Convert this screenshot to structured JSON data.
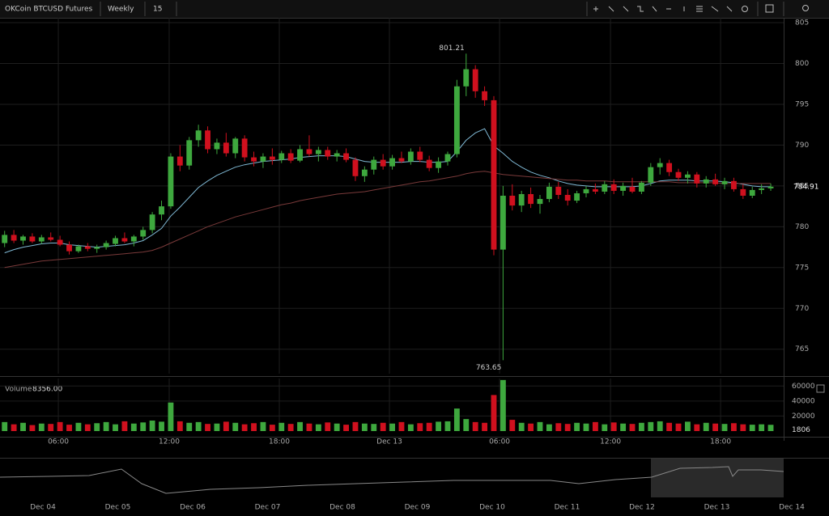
{
  "toolbar": {
    "symbol": "OKCoin BTCUSD Futures",
    "range": "Weekly",
    "interval": "15"
  },
  "volume_header": {
    "title": "Volume",
    "value": "8356.00"
  },
  "navigator": {
    "dates": [
      "Dec 04",
      "Dec 05",
      "Dec 06",
      "Dec 07",
      "Dec 08",
      "Dec 09",
      "Dec 10",
      "Dec 11",
      "Dec 12",
      "Dec 13",
      "Dec 14"
    ]
  },
  "chart_data": [
    {
      "type": "candlestick",
      "up_color": "#3ea83e",
      "down_color": "#d0101e",
      "grid": true,
      "xlim": [
        -0.5,
        84.4
      ],
      "ylim": [
        762,
        805.6
      ],
      "yticks": [
        765,
        770,
        775,
        780,
        785,
        790,
        795,
        800,
        805
      ],
      "open": [
        778,
        779,
        778.3,
        778.8,
        778.2,
        778.7,
        778.4,
        777.8,
        777,
        777.6,
        777.3,
        777.5,
        777.9,
        778.6,
        778.2,
        778.8,
        779.6,
        781.5,
        782.5,
        788.6,
        787.5,
        790.6,
        791.8,
        789.5,
        790.3,
        789,
        790.8,
        788.5,
        788,
        788.6,
        788.2,
        789,
        788.1,
        789.5,
        788.9,
        789.4,
        788.6,
        789,
        788.2,
        786.2,
        787,
        788.2,
        787.4,
        788.4,
        788,
        789.2,
        788.2,
        787.2,
        788,
        788.9,
        797.2,
        799.3,
        796.6,
        795.5,
        777.2,
        783.8,
        782.6,
        784,
        782.8,
        783.4,
        784.9,
        783.9,
        783.2,
        784.1,
        784.6,
        784.3,
        785.2,
        784.4,
        784.9,
        784.3,
        785.4,
        787.3,
        787.8,
        786.7,
        786,
        786.4,
        785.3,
        785.8,
        785.2,
        785.6,
        784.6,
        783.8,
        784.5,
        784.7
      ],
      "high": [
        779.5,
        779.6,
        779,
        779.2,
        779,
        779.3,
        778.9,
        778.2,
        777.8,
        778,
        777.8,
        778.3,
        778.9,
        779.3,
        779,
        780,
        781.8,
        783.2,
        789,
        790,
        791,
        792.5,
        792.3,
        790.8,
        791.5,
        791,
        791.2,
        789.2,
        789,
        789.6,
        789.3,
        789.5,
        790,
        791.2,
        789.8,
        789.8,
        789.4,
        789.6,
        788.5,
        787.4,
        788.6,
        788.9,
        788.8,
        789.2,
        789.6,
        789.8,
        788.7,
        788.5,
        789.2,
        798,
        801.21,
        799.8,
        797.2,
        796,
        785,
        785.2,
        784.4,
        784.8,
        783.9,
        785.4,
        785.5,
        784.6,
        784.4,
        785,
        785.3,
        785.6,
        785.8,
        785.4,
        786,
        785.6,
        787.8,
        788.4,
        788.2,
        787.1,
        786.8,
        786.7,
        786.2,
        786.5,
        786,
        786,
        785.2,
        784.9,
        785.2,
        785.3
      ],
      "low": [
        777.5,
        778,
        777.8,
        778,
        777.9,
        778.2,
        777.6,
        776.6,
        776.8,
        777,
        776.8,
        777.2,
        777.6,
        778,
        777.6,
        778.4,
        779.2,
        780.8,
        782.2,
        786.8,
        787,
        789.8,
        789,
        788.9,
        788.6,
        788.4,
        788,
        787.4,
        787.2,
        787.6,
        787.8,
        787.8,
        787.9,
        788.6,
        788,
        788.2,
        788,
        787.9,
        785.6,
        785.5,
        786.4,
        787,
        787,
        787.8,
        787.6,
        787.9,
        786.8,
        786.6,
        787.5,
        788.5,
        796,
        795.8,
        794.8,
        776.5,
        763.65,
        782,
        781.8,
        782.3,
        781.6,
        783,
        783.4,
        782.6,
        782.9,
        783.6,
        784,
        784,
        784,
        783.8,
        784.1,
        784,
        785,
        786.4,
        786.2,
        785.6,
        785.3,
        784.8,
        784.8,
        785,
        784.6,
        784.3,
        783.4,
        783.5,
        784,
        784.4
      ],
      "close": [
        779,
        778.3,
        778.8,
        778.2,
        778.7,
        778.4,
        777.8,
        777,
        777.6,
        777.3,
        777.5,
        778,
        778.6,
        778.2,
        778.8,
        779.6,
        781.5,
        782.5,
        788.6,
        787.5,
        790.6,
        791.8,
        789.5,
        790.3,
        789,
        790.8,
        788.5,
        788,
        788.6,
        788.2,
        789,
        788.1,
        789.5,
        788.9,
        789.4,
        788.6,
        789,
        788.2,
        786.2,
        787,
        788.2,
        787.4,
        788.4,
        788,
        789.2,
        788.2,
        787.2,
        788,
        788.9,
        797.2,
        799.3,
        796.6,
        795.5,
        777.2,
        783.8,
        782.6,
        784,
        782.8,
        783.4,
        784.9,
        783.9,
        783.2,
        784.1,
        784.6,
        784.3,
        785.2,
        784.4,
        785,
        784.3,
        785.4,
        787.3,
        787.8,
        786.7,
        786,
        786.4,
        785.3,
        785.8,
        785.2,
        785.6,
        784.6,
        783.8,
        784.5,
        784.7,
        784.91
      ],
      "overlays": [
        {
          "color": "#7fb8d4",
          "values": [
            776.8,
            777.2,
            777.5,
            777.7,
            777.9,
            778,
            778,
            777.8,
            777.7,
            777.6,
            777.5,
            777.6,
            777.7,
            777.8,
            778,
            778.3,
            779,
            779.8,
            781.3,
            782.4,
            783.6,
            784.8,
            785.6,
            786.3,
            786.8,
            787.3,
            787.6,
            787.8,
            788,
            788.1,
            788.2,
            788.3,
            788.5,
            788.6,
            788.7,
            788.7,
            788.7,
            788.6,
            788.3,
            788,
            787.9,
            787.9,
            787.9,
            787.9,
            788,
            788,
            787.9,
            787.9,
            788,
            789.2,
            790.6,
            791.5,
            792,
            789.9,
            789,
            788,
            787.3,
            786.7,
            786.3,
            786,
            785.6,
            785.3,
            785.1,
            785,
            784.9,
            784.9,
            784.9,
            784.9,
            784.9,
            785,
            785.3,
            785.6,
            785.7,
            785.7,
            785.7,
            785.6,
            785.6,
            785.6,
            785.5,
            785.4,
            785.2,
            785,
            784.9,
            784.9
          ]
        },
        {
          "color": "#7a3a3a",
          "values": [
            775,
            775.2,
            775.4,
            775.6,
            775.8,
            775.9,
            776,
            776.1,
            776.2,
            776.3,
            776.4,
            776.5,
            776.6,
            776.7,
            776.8,
            776.9,
            777.1,
            777.5,
            778,
            778.5,
            779,
            779.5,
            780,
            780.4,
            780.8,
            781.2,
            781.5,
            781.8,
            782.1,
            782.4,
            782.7,
            782.9,
            783.2,
            783.4,
            783.6,
            783.8,
            784,
            784.1,
            784.2,
            784.3,
            784.5,
            784.7,
            784.9,
            785.1,
            785.3,
            785.5,
            785.6,
            785.8,
            786,
            786.2,
            786.5,
            786.7,
            786.8,
            786.6,
            786.4,
            786.3,
            786.2,
            786.1,
            786,
            785.9,
            785.8,
            785.7,
            785.7,
            785.6,
            785.6,
            785.6,
            785.5,
            785.5,
            785.5,
            785.5,
            785.5,
            785.5,
            785.5,
            785.4,
            785.4,
            785.4,
            785.4,
            785.4,
            785.3,
            785.3,
            785.3,
            785.3,
            785.3,
            785.3
          ]
        }
      ]
    },
    {
      "type": "bar",
      "xlim": [
        -0.5,
        84.4
      ],
      "ylim": [
        0,
        70000
      ],
      "yticks": [
        20000,
        40000,
        60000
      ],
      "volume_tag": 1806,
      "xticks": [
        {
          "value": 5.82,
          "label": "06:00"
        },
        {
          "value": 17.83,
          "label": "12:00"
        },
        {
          "value": 29.76,
          "label": "18:00"
        },
        {
          "value": 41.69,
          "label": "Dec 13"
        },
        {
          "value": 53.62,
          "label": "06:00"
        },
        {
          "value": 65.64,
          "label": "12:00"
        },
        {
          "value": 77.57,
          "label": "18:00"
        }
      ],
      "values": [
        12000,
        9000,
        11000,
        8000,
        10000,
        9500,
        12000,
        8500,
        11000,
        9000,
        10500,
        12000,
        9000,
        13000,
        10000,
        11500,
        14000,
        12500,
        38000,
        13000,
        11000,
        12000,
        9500,
        10000,
        12500,
        11000,
        9000,
        10500,
        12000,
        8500,
        11000,
        9500,
        12000,
        10000,
        9000,
        11500,
        10000,
        8500,
        12000,
        10000,
        9500,
        11000,
        10000,
        12000,
        9000,
        10500,
        11000,
        12500,
        13000,
        30000,
        16000,
        12000,
        11000,
        48000,
        68000,
        15000,
        11000,
        10000,
        12000,
        9000,
        10500,
        9500,
        11000,
        10000,
        12000,
        9000,
        11500,
        10000,
        9500,
        11000,
        12000,
        13000,
        11000,
        10000,
        12500,
        9000,
        11000,
        10000,
        9500,
        10500,
        9000,
        8500,
        9000,
        8356
      ]
    }
  ]
}
